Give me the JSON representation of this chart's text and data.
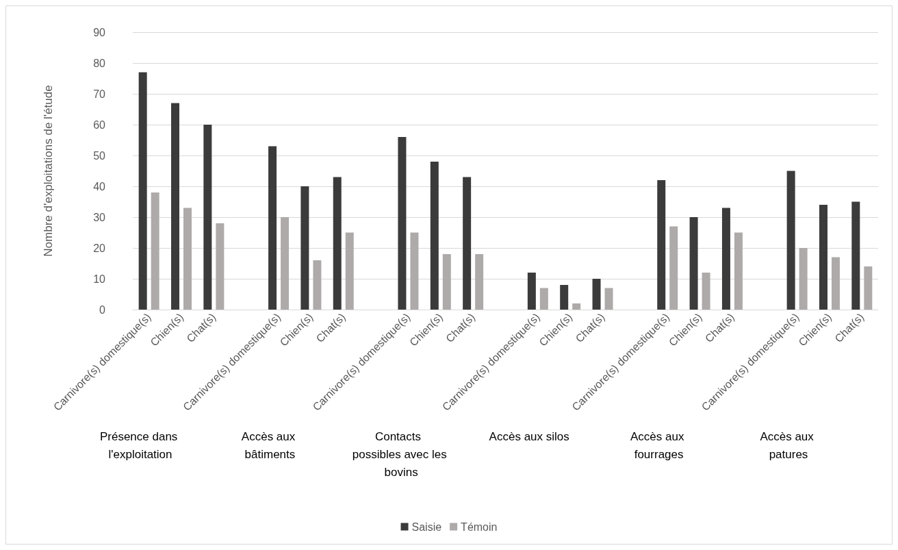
{
  "chart_data": {
    "type": "bar",
    "ylabel": "Nombre d'exploitations de l'étude",
    "categories": [
      "Carnivore(s) domestique(s)",
      "Chien(s)",
      "Chat(s)",
      null,
      "Carnivore(s) domestique(s)",
      "Chien(s)",
      "Chat(s)",
      null,
      "Carnivore(s) domestique(s)",
      "Chien(s)",
      "Chat(s)",
      null,
      "Carnivore(s) domestique(s)",
      "Chien(s)",
      "Chat(s)",
      null,
      "Carnivore(s) domestique(s)",
      "Chien(s)",
      "Chat(s)",
      null,
      "Carnivore(s) domestique(s)",
      "Chien(s)",
      "Chat(s)"
    ],
    "series": [
      {
        "name": "Saisie",
        "color": "#3b3b3b",
        "values": [
          77,
          67,
          60,
          null,
          53,
          40,
          43,
          null,
          56,
          48,
          43,
          null,
          12,
          8,
          10,
          null,
          42,
          30,
          33,
          null,
          45,
          34,
          35
        ]
      },
      {
        "name": "Témoin",
        "color": "#aeaaaa",
        "values": [
          38,
          33,
          28,
          null,
          30,
          16,
          25,
          null,
          25,
          18,
          18,
          null,
          7,
          2,
          7,
          null,
          27,
          12,
          25,
          null,
          20,
          17,
          14
        ]
      }
    ],
    "annotations": [
      "Présence dans l'exploitation",
      "Accès aux bâtiments",
      "Contacts possibles avec les bovins",
      "Accès aux silos",
      "Accès aux fourrages",
      "Accès aux patures"
    ],
    "ylim": [
      0,
      90
    ],
    "yticks": [
      0,
      10,
      20,
      30,
      40,
      50,
      60,
      70,
      80,
      90
    ],
    "grid": "y",
    "legend": "bottom"
  }
}
